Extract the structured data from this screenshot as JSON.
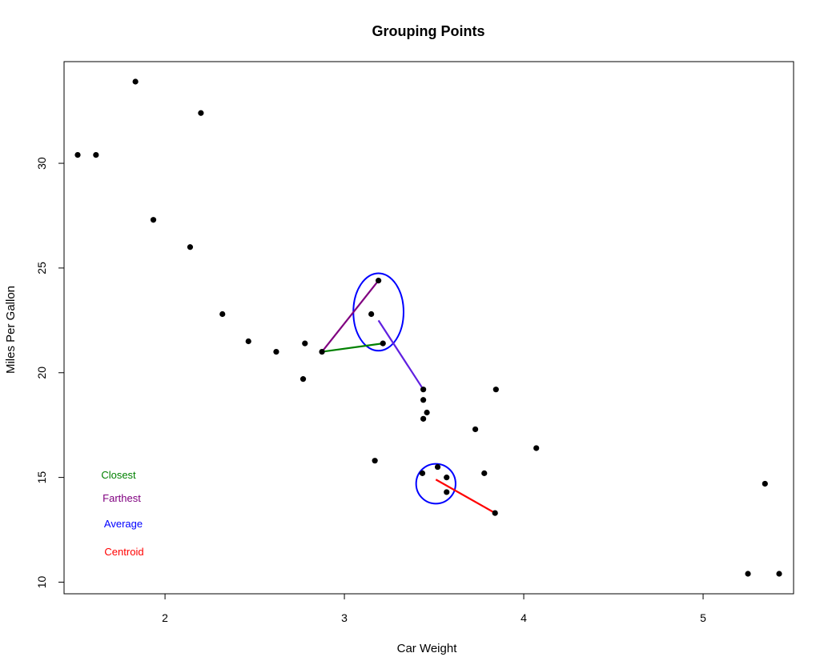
{
  "chart_data": {
    "type": "scatter",
    "title": "Grouping Points",
    "xlabel": "Car Weight",
    "ylabel": "Miles Per Gallon",
    "xlim": [
      1.513,
      5.424
    ],
    "ylim": [
      10.4,
      33.9
    ],
    "xticks": [
      "2",
      "3",
      "4",
      "5"
    ],
    "yticks": [
      "10",
      "15",
      "20",
      "25",
      "30"
    ],
    "grid": false,
    "points": [
      {
        "x": 2.62,
        "y": 21.0
      },
      {
        "x": 2.875,
        "y": 21.0
      },
      {
        "x": 2.32,
        "y": 22.8
      },
      {
        "x": 3.215,
        "y": 21.4
      },
      {
        "x": 3.44,
        "y": 18.7
      },
      {
        "x": 3.46,
        "y": 18.1
      },
      {
        "x": 3.57,
        "y": 14.3
      },
      {
        "x": 3.19,
        "y": 24.4
      },
      {
        "x": 3.15,
        "y": 22.8
      },
      {
        "x": 3.44,
        "y": 19.2
      },
      {
        "x": 3.44,
        "y": 17.8
      },
      {
        "x": 4.07,
        "y": 16.4
      },
      {
        "x": 3.73,
        "y": 17.3
      },
      {
        "x": 3.78,
        "y": 15.2
      },
      {
        "x": 5.25,
        "y": 10.4
      },
      {
        "x": 5.424,
        "y": 10.4
      },
      {
        "x": 5.345,
        "y": 14.7
      },
      {
        "x": 2.2,
        "y": 32.4
      },
      {
        "x": 1.615,
        "y": 30.4
      },
      {
        "x": 1.835,
        "y": 33.9
      },
      {
        "x": 2.465,
        "y": 21.5
      },
      {
        "x": 3.52,
        "y": 15.5
      },
      {
        "x": 3.435,
        "y": 15.2
      },
      {
        "x": 3.84,
        "y": 13.3
      },
      {
        "x": 3.845,
        "y": 19.2
      },
      {
        "x": 1.935,
        "y": 27.3
      },
      {
        "x": 2.14,
        "y": 26.0
      },
      {
        "x": 1.513,
        "y": 30.4
      },
      {
        "x": 3.17,
        "y": 15.8
      },
      {
        "x": 2.77,
        "y": 19.7
      },
      {
        "x": 3.57,
        "y": 15.0
      },
      {
        "x": 2.78,
        "y": 21.4
      }
    ],
    "ellipses": [
      {
        "name": "group-a",
        "cx": 3.19,
        "cy": 22.9,
        "rx": 0.14,
        "ry": 1.85,
        "color": "#0000ff"
      },
      {
        "name": "group-b",
        "cx": 3.51,
        "cy": 14.7,
        "rx": 0.11,
        "ry": 0.95,
        "color": "#0000ff"
      }
    ],
    "segments": [
      {
        "name": "closest",
        "x1": 2.875,
        "y1": 21.0,
        "x2": 3.215,
        "y2": 21.4,
        "color": "#008000"
      },
      {
        "name": "farthest",
        "x1": 2.875,
        "y1": 21.0,
        "x2": 3.19,
        "y2": 24.4,
        "color": "#800080"
      },
      {
        "name": "average",
        "x1": 3.19,
        "y1": 22.5,
        "x2": 3.44,
        "y2": 19.2,
        "color": "#6020e0"
      },
      {
        "name": "centroid",
        "x1": 3.51,
        "y1": 14.9,
        "x2": 3.84,
        "y2": 13.3,
        "color": "#ff0000"
      }
    ],
    "legend": {
      "placement": "bottom-left",
      "entries": [
        {
          "label": "Closest",
          "color": "#008000"
        },
        {
          "label": "Farthest",
          "color": "#800080"
        },
        {
          "label": "Average",
          "color": "#0000ff"
        },
        {
          "label": "Centroid",
          "color": "#ff0000"
        }
      ]
    }
  }
}
